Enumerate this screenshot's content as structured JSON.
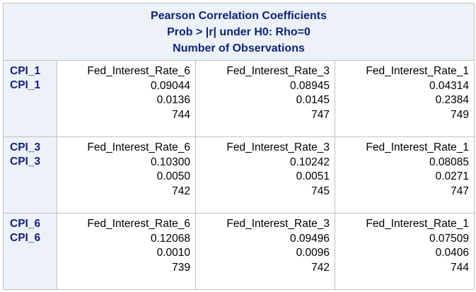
{
  "header": {
    "line1": "Pearson Correlation Coefficients",
    "line2": "Prob > |r| under H0: Rho=0",
    "line3": "Number of Observations"
  },
  "rows": [
    {
      "label_top": "CPI_1",
      "label_bottom": "CPI_1",
      "cells": [
        {
          "var": "Fed_Interest_Rate_6",
          "r": "0.09044",
          "p": "0.0136",
          "n": "744"
        },
        {
          "var": "Fed_Interest_Rate_3",
          "r": "0.08945",
          "p": "0.0145",
          "n": "747"
        },
        {
          "var": "Fed_Interest_Rate_1",
          "r": "0.04314",
          "p": "0.2384",
          "n": "749"
        }
      ]
    },
    {
      "label_top": "CPI_3",
      "label_bottom": "CPI_3",
      "cells": [
        {
          "var": "Fed_Interest_Rate_6",
          "r": "0.10300",
          "p": "0.0050",
          "n": "742"
        },
        {
          "var": "Fed_Interest_Rate_3",
          "r": "0.10242",
          "p": "0.0051",
          "n": "745"
        },
        {
          "var": "Fed_Interest_Rate_1",
          "r": "0.08085",
          "p": "0.0271",
          "n": "747"
        }
      ]
    },
    {
      "label_top": "CPI_6",
      "label_bottom": "CPI_6",
      "cells": [
        {
          "var": "Fed_Interest_Rate_6",
          "r": "0.12068",
          "p": "0.0010",
          "n": "739"
        },
        {
          "var": "Fed_Interest_Rate_3",
          "r": "0.09496",
          "p": "0.0096",
          "n": "742"
        },
        {
          "var": "Fed_Interest_Rate_1",
          "r": "0.07509",
          "p": "0.0406",
          "n": "744"
        }
      ]
    }
  ]
}
